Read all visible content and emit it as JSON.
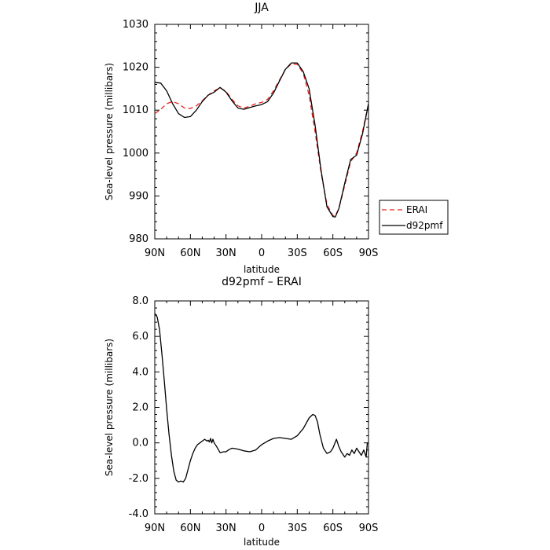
{
  "chart_data": [
    {
      "type": "line",
      "title": "JJA",
      "xlabel": "latitude",
      "ylabel": "Sea-level pressure (millibars)",
      "xlim": [
        90,
        -90
      ],
      "ylim": [
        980,
        1030
      ],
      "x_ticks": [
        90,
        60,
        30,
        0,
        -30,
        -60,
        -90
      ],
      "x_tick_labels": [
        "90N",
        "60N",
        "30N",
        "0",
        "30S",
        "60S",
        "90S"
      ],
      "y_ticks": [
        980,
        990,
        1000,
        1010,
        1020,
        1030
      ],
      "y_tick_labels": [
        "980",
        "990",
        "1000",
        "1010",
        "1020",
        "1030"
      ],
      "legend_position": "right, outside plot",
      "series": [
        {
          "name": "ERAI",
          "color": "#e8201c",
          "dash": "dashed",
          "x": [
            90,
            85,
            80,
            75,
            70,
            65,
            60,
            55,
            50,
            45,
            40,
            35,
            30,
            25,
            20,
            15,
            10,
            5,
            0,
            -5,
            -10,
            -15,
            -20,
            -25,
            -30,
            -35,
            -40,
            -45,
            -50,
            -55,
            -60,
            -62,
            -65,
            -70,
            -75,
            -80,
            -85,
            -90
          ],
          "y": [
            1009.2,
            1010.2,
            1011.5,
            1012.0,
            1011.5,
            1010.5,
            1010.4,
            1011.0,
            1012.2,
            1013.5,
            1014.5,
            1015.2,
            1014.4,
            1012.5,
            1011.0,
            1010.5,
            1010.9,
            1011.5,
            1011.8,
            1012.5,
            1014.5,
            1017.0,
            1019.5,
            1020.8,
            1020.7,
            1018.6,
            1013.5,
            1005.0,
            995.5,
            988.0,
            985.4,
            985.4,
            987.0,
            992.5,
            998.0,
            1000.0,
            1005.0,
            1011.5
          ]
        },
        {
          "name": "d92pmf",
          "color": "#000000",
          "dash": "solid",
          "x": [
            90,
            85,
            80,
            75,
            70,
            65,
            60,
            55,
            50,
            45,
            40,
            35,
            30,
            25,
            20,
            15,
            10,
            5,
            0,
            -5,
            -10,
            -15,
            -20,
            -25,
            -30,
            -35,
            -40,
            -45,
            -50,
            -55,
            -60,
            -62,
            -65,
            -70,
            -75,
            -80,
            -85,
            -90
          ],
          "y": [
            1016.5,
            1016.3,
            1014.5,
            1011.5,
            1009.2,
            1008.3,
            1008.5,
            1010.0,
            1012.0,
            1013.5,
            1014.2,
            1015.3,
            1014.2,
            1012.2,
            1010.5,
            1010.2,
            1010.6,
            1011.0,
            1011.3,
            1012.0,
            1014.0,
            1016.8,
            1019.5,
            1021.0,
            1021.0,
            1019.0,
            1015.0,
            1006.5,
            996.0,
            987.5,
            985.2,
            985.1,
            987.0,
            993.0,
            998.5,
            999.5,
            1004.5,
            1011.5
          ]
        }
      ]
    },
    {
      "type": "line",
      "title": "d92pmf – ERAI",
      "xlabel": "latitude",
      "ylabel": "Sea-level pressure (millibars)",
      "xlim": [
        90,
        -90
      ],
      "ylim": [
        -4,
        8
      ],
      "x_ticks": [
        90,
        60,
        30,
        0,
        -30,
        -60,
        -90
      ],
      "x_tick_labels": [
        "90N",
        "60N",
        "30N",
        "0",
        "30S",
        "60S",
        "90S"
      ],
      "y_ticks": [
        -4,
        -2,
        0,
        2,
        4,
        6,
        8
      ],
      "y_tick_labels": [
        "-4.0",
        "-2.0",
        "0.0",
        "2.0",
        "4.0",
        "6.0",
        "8.0"
      ],
      "series": [
        {
          "color": "#000000",
          "dash": "solid",
          "x": [
            90,
            88,
            86,
            84,
            82,
            80,
            78,
            76,
            74,
            72,
            70,
            68,
            66,
            64,
            62,
            60,
            58,
            56,
            54,
            52,
            50,
            48,
            46,
            45,
            44,
            43,
            42,
            41,
            40,
            38,
            35,
            32,
            30,
            28,
            25,
            20,
            15,
            10,
            5,
            0,
            -5,
            -10,
            -15,
            -20,
            -25,
            -30,
            -35,
            -40,
            -43,
            -45,
            -47,
            -49,
            -52,
            -55,
            -58,
            -60,
            -63,
            -65,
            -67,
            -70,
            -72,
            -74,
            -76,
            -78,
            -80,
            -82,
            -84,
            -86,
            -88,
            -89,
            -90
          ],
          "y": [
            7.3,
            7.1,
            6.4,
            5.0,
            3.5,
            1.9,
            0.5,
            -0.7,
            -1.6,
            -2.1,
            -2.2,
            -2.15,
            -2.2,
            -2.0,
            -1.5,
            -1.0,
            -0.6,
            -0.3,
            -0.1,
            0.0,
            0.1,
            0.2,
            0.1,
            0.15,
            0.05,
            0.25,
            0.0,
            0.2,
            0.0,
            -0.2,
            -0.55,
            -0.5,
            -0.5,
            -0.4,
            -0.3,
            -0.35,
            -0.45,
            -0.5,
            -0.4,
            -0.1,
            0.1,
            0.25,
            0.3,
            0.25,
            0.2,
            0.4,
            0.8,
            1.4,
            1.6,
            1.55,
            1.2,
            0.5,
            -0.3,
            -0.6,
            -0.5,
            -0.3,
            0.2,
            -0.2,
            -0.5,
            -0.8,
            -0.6,
            -0.7,
            -0.4,
            -0.6,
            -0.3,
            -0.5,
            -0.7,
            -0.4,
            -0.8,
            0.0,
            0.0
          ]
        }
      ]
    }
  ]
}
